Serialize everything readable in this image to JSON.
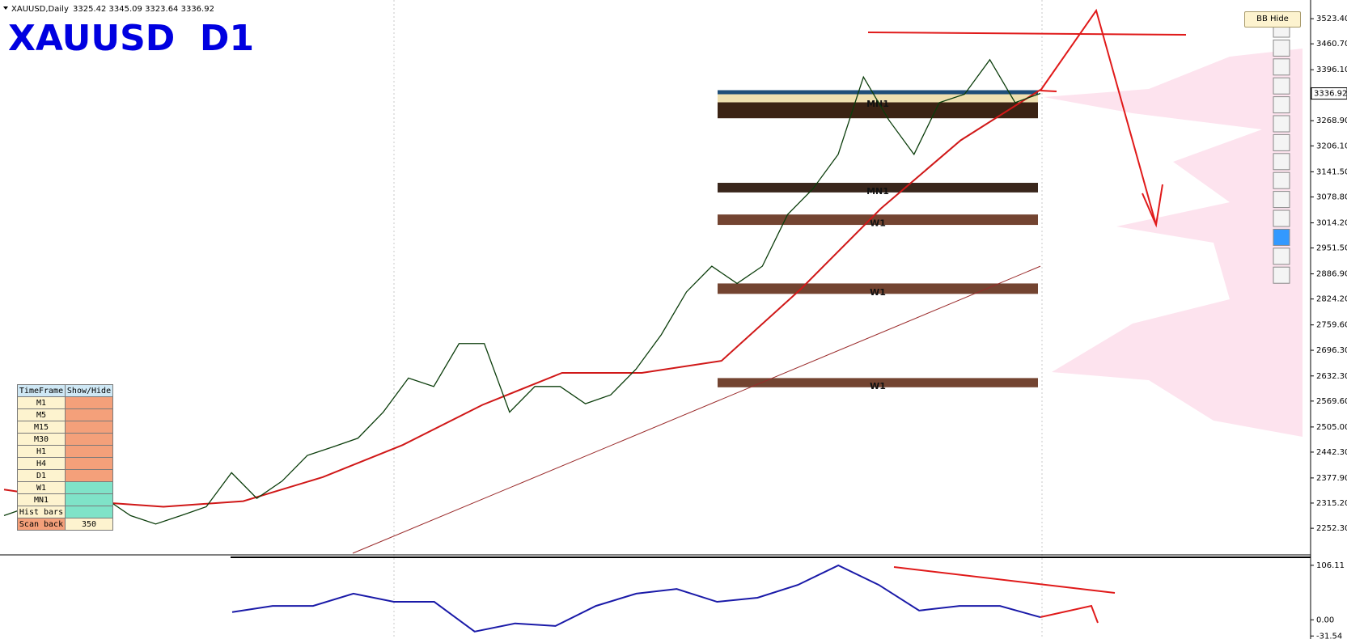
{
  "header": {
    "symbol_info": "XAUUSD,Daily",
    "ohlc": "3325.42 3345.09 3323.64 3336.92",
    "title": "XAUUSD  D1"
  },
  "bb_button": "BB Hide",
  "chart_data": {
    "type": "line",
    "ylim": [
      2188,
      3570
    ],
    "yticks": [
      {
        "value": 3523.4,
        "label": "3523.40"
      },
      {
        "value": 3460.7,
        "label": "3460.70"
      },
      {
        "value": 3396.1,
        "label": "3396.10"
      },
      {
        "value": 3268.9,
        "label": "3268.90"
      },
      {
        "value": 3206.1,
        "label": "3206.10"
      },
      {
        "value": 3141.5,
        "label": "3141.50"
      },
      {
        "value": 3078.8,
        "label": "3078.80"
      },
      {
        "value": 3014.2,
        "label": "3014.20"
      },
      {
        "value": 2951.5,
        "label": "2951.50"
      },
      {
        "value": 2886.9,
        "label": "2886.90"
      },
      {
        "value": 2824.2,
        "label": "2824.20"
      },
      {
        "value": 2759.6,
        "label": "2759.60"
      },
      {
        "value": 2696.3,
        "label": "2696.30"
      },
      {
        "value": 2632.3,
        "label": "2632.30"
      },
      {
        "value": 2569.6,
        "label": "2569.60"
      },
      {
        "value": 2505.0,
        "label": "2505.00"
      },
      {
        "value": 2442.3,
        "label": "2442.30"
      },
      {
        "value": 2377.9,
        "label": "2377.90"
      },
      {
        "value": 2315.2,
        "label": "2315.20"
      },
      {
        "value": 2252.3,
        "label": "2252.30"
      }
    ],
    "current_price": 3336.92,
    "price": {
      "color": "#0b3d0b",
      "values": [
        2284,
        2306,
        2263,
        2284,
        2327,
        2284,
        2263,
        2284,
        2306,
        2391,
        2327,
        2370,
        2434,
        2455,
        2477,
        2542,
        2627,
        2606,
        2713,
        2713,
        2542,
        2606,
        2606,
        2563,
        2585,
        2649,
        2735,
        2842,
        2906,
        2863,
        2906,
        3035,
        3099,
        3185,
        3378,
        3271,
        3185,
        3314,
        3335,
        3421,
        3314,
        3337
      ]
    },
    "ma": {
      "color": "#d01818",
      "values": [
        2349,
        2320,
        2306,
        2320,
        2380,
        2460,
        2560,
        2640,
        2640,
        2670,
        2850,
        3050,
        3220,
        3346
      ]
    },
    "long_ma": {
      "color": "#9a2a2a",
      "values": [
        2190,
        2906
      ]
    },
    "zones": [
      {
        "label": "MN1",
        "top": 3345,
        "bottom": 3275,
        "color": "#3b2314"
      },
      {
        "label": "MN1",
        "top": 3114,
        "bottom": 3090,
        "color": "#2e1a10"
      },
      {
        "label": "W1",
        "top": 3035,
        "bottom": 3009,
        "color": "#6b3a26"
      },
      {
        "label": "W1",
        "top": 2863,
        "bottom": 2837,
        "color": "#6b3a26"
      },
      {
        "label": "W1",
        "top": 2627,
        "bottom": 2604,
        "color": "#6b3a26"
      }
    ]
  },
  "indicator": {
    "ylim": [
      -37.4,
      121.7
    ],
    "yticks": [
      {
        "value": 106.11,
        "label": "106.11"
      },
      {
        "value": 0,
        "label": "0.00"
      },
      {
        "value": -31.54,
        "label": "-31.54"
      }
    ],
    "line": {
      "color": "#1a1aa8",
      "values": [
        15,
        27,
        27,
        51,
        35,
        35,
        -23,
        -7,
        -12,
        27,
        51,
        60,
        35,
        43,
        68,
        106,
        68,
        18,
        27,
        27,
        5
      ]
    }
  },
  "timeframe_panel": {
    "headers": [
      "TimeFrame",
      "Show/Hide"
    ],
    "rows": [
      {
        "label": "M1",
        "color": "#f4a07a"
      },
      {
        "label": "M5",
        "color": "#f4a07a"
      },
      {
        "label": "M15",
        "color": "#f4a07a"
      },
      {
        "label": "M30",
        "color": "#f4a07a"
      },
      {
        "label": "H1",
        "color": "#f4a07a"
      },
      {
        "label": "H4",
        "color": "#f4a07a"
      },
      {
        "label": "D1",
        "color": "#f4a07a"
      },
      {
        "label": "W1",
        "color": "#7fe3c8"
      },
      {
        "label": "MN1",
        "color": "#7fe3c8"
      }
    ],
    "hist_label": "Hist bars",
    "scan_label": "Scan back",
    "scan_value": "350"
  }
}
